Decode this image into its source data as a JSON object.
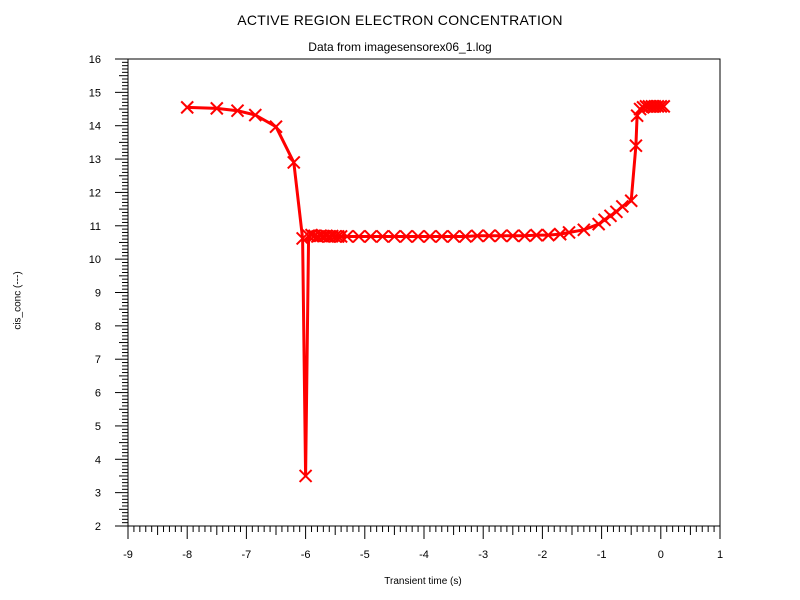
{
  "chart_data": {
    "type": "line",
    "title": "ACTIVE REGION ELECTRON CONCENTRATION",
    "subtitle": "Data from imagesensorex06_1.log",
    "xlabel": "Transient time (s)",
    "ylabel": "cis_conc (---)",
    "xlim": [
      -9,
      1
    ],
    "ylim": [
      2,
      16
    ],
    "x_ticks": [
      -9,
      -8,
      -7,
      -6,
      -5,
      -4,
      -3,
      -2,
      -1,
      0,
      1
    ],
    "y_ticks": [
      2,
      3,
      4,
      5,
      6,
      7,
      8,
      9,
      10,
      11,
      12,
      13,
      14,
      15,
      16
    ],
    "grid": false,
    "line_color": "#ff0000",
    "marker": "x",
    "series": [
      {
        "x": [
          -8.0,
          -7.5,
          -7.15,
          -6.85,
          -6.5,
          -6.2,
          -6.05,
          -6.0,
          -5.95,
          -5.9,
          -5.85,
          -5.8,
          -5.75,
          -5.7,
          -5.65,
          -5.6,
          -5.55,
          -5.5,
          -5.45,
          -5.4,
          -5.3,
          -5.1,
          -4.9,
          -4.7,
          -4.5,
          -4.3,
          -4.1,
          -3.9,
          -3.7,
          -3.5,
          -3.3,
          -3.1,
          -2.9,
          -2.7,
          -2.5,
          -2.3,
          -2.1,
          -1.9,
          -1.7,
          -1.55,
          -1.3,
          -1.05,
          -0.95,
          -0.85,
          -0.75,
          -0.65,
          -0.5,
          -0.42,
          -0.4,
          -0.35,
          -0.3,
          -0.25,
          -0.2,
          -0.15,
          -0.1,
          -0.05,
          0.0,
          0.05
        ],
        "y": [
          14.55,
          14.52,
          14.45,
          14.32,
          13.97,
          12.9,
          10.62,
          3.5,
          10.7,
          10.72,
          10.7,
          10.68,
          10.7,
          10.69,
          10.7,
          10.68,
          10.69,
          10.68,
          10.68,
          10.68,
          10.68,
          10.68,
          10.68,
          10.68,
          10.68,
          10.68,
          10.68,
          10.68,
          10.68,
          10.68,
          10.68,
          10.7,
          10.7,
          10.7,
          10.7,
          10.7,
          10.72,
          10.72,
          10.75,
          10.8,
          10.88,
          11.05,
          11.18,
          11.3,
          11.42,
          11.58,
          11.75,
          13.4,
          14.3,
          14.5,
          14.55,
          14.58,
          14.58,
          14.58,
          14.58,
          14.58,
          14.58,
          14.58
        ]
      }
    ]
  }
}
